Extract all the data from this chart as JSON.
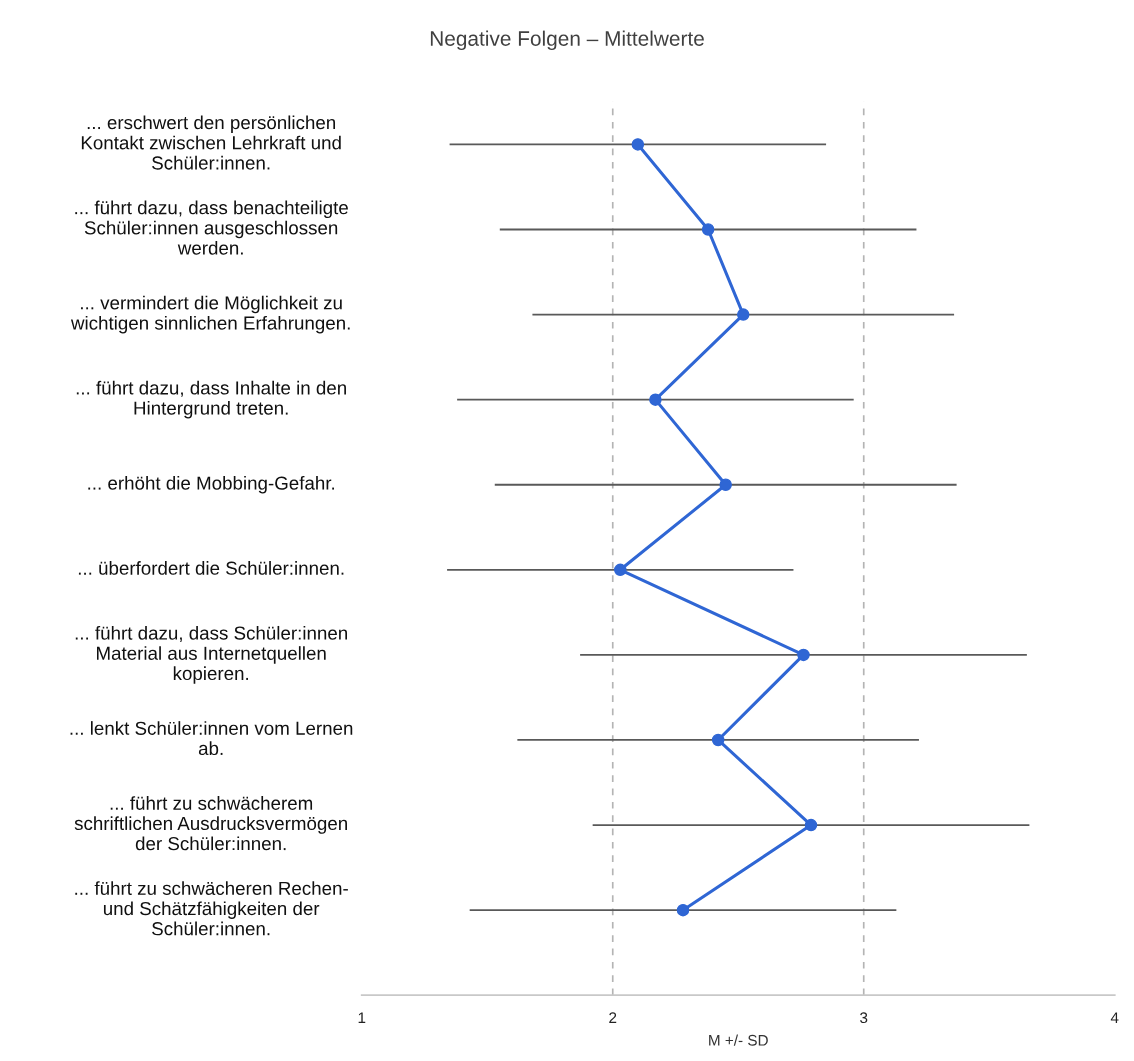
{
  "chart_data": {
    "type": "line",
    "orientation": "horizontal",
    "title": "Negative Folgen – Mittelwerte",
    "xlabel": "M +/- SD",
    "categories": [
      "... erschwert den persönlichen\nKontakt zwischen Lehrkraft und\nSchüler:innen.",
      "... führt dazu, dass benachteiligte\nSchüler:innen ausgeschlossen\nwerden.",
      "... vermindert die Möglichkeit zu\nwichtigen sinnlichen Erfahrungen.",
      "... führt dazu, dass Inhalte in den\nHintergrund treten.",
      "... erhöht die Mobbing-Gefahr.",
      "... überfordert die Schüler:innen.",
      "... führt dazu, dass Schüler:innen\nMaterial aus Internetquellen\nkopieren.",
      "... lenkt Schüler:innen vom Lernen\nab.",
      "... führt zu schwächerem\nschriftlichen Ausdrucksvermögen\nder Schüler:innen.",
      "... führt zu schwächeren Rechen-\nund Schätzfähigkeiten der\nSchüler:innen."
    ],
    "color": "#2f66d4",
    "values": [
      2.1,
      2.38,
      2.52,
      2.17,
      2.45,
      2.03,
      2.76,
      2.42,
      2.79,
      2.28
    ],
    "errors": [
      0.75,
      0.83,
      0.84,
      0.79,
      0.92,
      0.69,
      0.89,
      0.8,
      0.87,
      0.85
    ],
    "marker": "circle",
    "xlim": [
      1,
      4
    ],
    "xticks": [
      1,
      2,
      3,
      4
    ],
    "ref_lines": [
      {
        "axis": "x",
        "value": 2,
        "color": "#b4b4b4",
        "line_style": "dashed"
      },
      {
        "axis": "x",
        "value": 3,
        "color": "#b4b4b4",
        "line_style": "dashed"
      }
    ]
  }
}
